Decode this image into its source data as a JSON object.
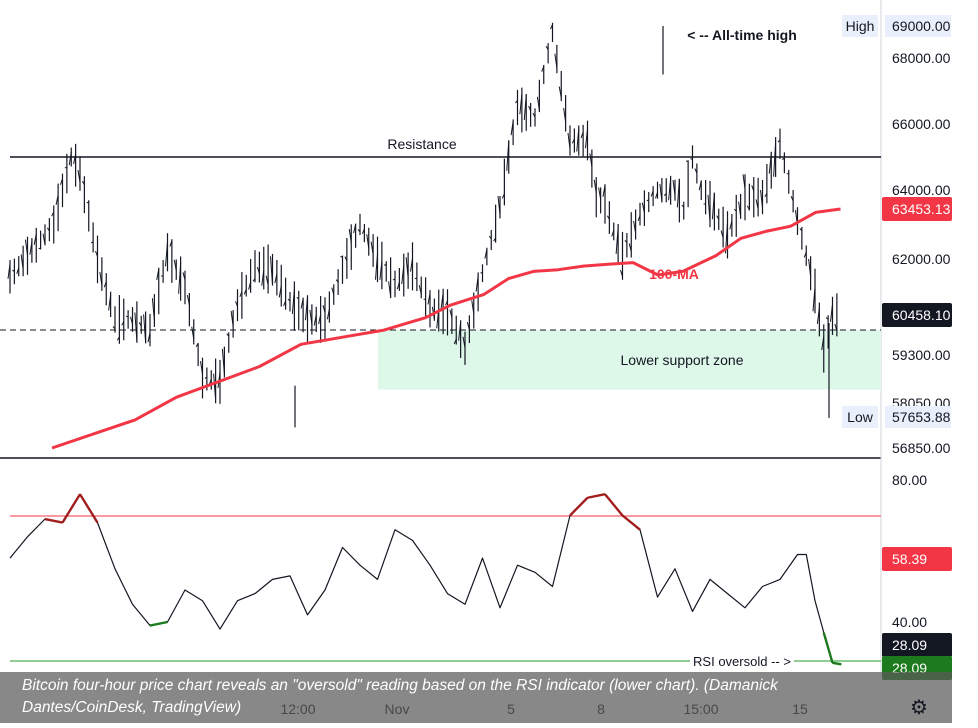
{
  "chart_data": [
    {
      "type": "line",
      "name": "Bitcoin four-hour price chart",
      "y_ticks": [
        "69000.00",
        "68000.00",
        "66000.00",
        "64000.00",
        "62000.00",
        "59300.00",
        "58050.00",
        "56850.00"
      ],
      "x_ticks": [
        "12:00",
        "Nov",
        "5",
        "8",
        "15:00",
        "15"
      ],
      "moving_average": {
        "name": "100-MA",
        "x": [
          0,
          10,
          15,
          20,
          25,
          30,
          35,
          40,
          45,
          48,
          52,
          55,
          58,
          61,
          64,
          67,
          70,
          73,
          76,
          80,
          83,
          86,
          89,
          92,
          95
        ],
        "values": [
          56850,
          57600,
          58200,
          58600,
          59000,
          59600,
          59800,
          60000,
          60350,
          60700,
          61000,
          61450,
          61650,
          61700,
          61800,
          61850,
          61900,
          61550,
          61650,
          62100,
          62600,
          62800,
          62950,
          63350,
          63450
        ]
      },
      "price_range": {
        "x": [
          0,
          5,
          7,
          8,
          10,
          12,
          14,
          16,
          18,
          20,
          22,
          24,
          26,
          28,
          30,
          32,
          34,
          36,
          38,
          40,
          42,
          44,
          46,
          48,
          50,
          52,
          54,
          56,
          58,
          60,
          62,
          64,
          66,
          67,
          68,
          69,
          70,
          72,
          74,
          76,
          77,
          78,
          79,
          80,
          82,
          84,
          86,
          88,
          90,
          92,
          93,
          94,
          95
        ],
        "values": [
          61500,
          63000,
          65000,
          64500,
          62000,
          60300,
          60300,
          60000,
          62200,
          61200,
          58700,
          58600,
          60700,
          61800,
          61700,
          60800,
          60300,
          60300,
          61700,
          63000,
          62000,
          61300,
          61800,
          60600,
          60500,
          59500,
          61600,
          63500,
          66500,
          66200,
          68800,
          65500,
          65500,
          63800,
          63600,
          62800,
          62100,
          63300,
          64000,
          64000,
          63400,
          65000,
          64000,
          63600,
          62700,
          63800,
          63800,
          65400,
          63100,
          61100,
          59500,
          60400,
          60458
        ]
      },
      "levels": [
        {
          "label": "Resistance",
          "value": 65000
        },
        {
          "label": "< -- All-time high",
          "value": 69000
        },
        {
          "label": "Lower support zone",
          "value_top": 60000,
          "value_bottom": 58400
        }
      ],
      "price_tags": [
        {
          "label": "High",
          "value": "69000.00",
          "color": "#eaf0fb"
        },
        {
          "label": "",
          "value": "63453.13",
          "color": "#f23645"
        },
        {
          "label": "",
          "value": "60458.10",
          "color": "#131722"
        },
        {
          "label": "Low",
          "value": "57653.88",
          "color": "#eaf0fb"
        }
      ]
    },
    {
      "type": "line",
      "name": "RSI indicator",
      "y_ticks": [
        "80.00",
        "40.00"
      ],
      "overbought_level": 70,
      "oversold_level": 30,
      "oversold_label": "RSI oversold -- >",
      "series": [
        {
          "x": [
            0,
            2,
            4,
            6,
            8,
            10,
            12,
            14,
            16,
            18,
            20,
            22,
            24,
            26,
            28,
            30,
            32,
            34,
            36,
            38,
            40,
            42,
            44,
            46,
            48,
            50,
            52,
            54,
            56,
            58,
            60,
            62,
            64,
            66,
            68,
            70,
            72,
            74,
            76,
            78,
            80,
            82,
            84,
            86,
            88,
            90,
            91,
            92,
            93,
            94,
            95
          ],
          "values": [
            58,
            64,
            69,
            68,
            76,
            68,
            55,
            45,
            39,
            40,
            49,
            46,
            38,
            46,
            48,
            52,
            53,
            42,
            49,
            61,
            56,
            52,
            66,
            63,
            56,
            48,
            45,
            58,
            44,
            56,
            54,
            50,
            70,
            75,
            76,
            70,
            66,
            47,
            55,
            43,
            52,
            48,
            44,
            50,
            52,
            59,
            59,
            46,
            37,
            28.5,
            28.09
          ]
        }
      ],
      "price_tags": [
        {
          "value": "58.39",
          "color": "#f23645"
        },
        {
          "value": "28.09",
          "color": "#131722"
        },
        {
          "value": "28.09",
          "color": "#1e7a1e"
        }
      ]
    }
  ],
  "caption": {
    "line1": "Bitcoin four-hour price chart reveals an \"oversold\" reading based on the RSI indicator (lower chart). (Damanick",
    "line2": "Dantes/CoinDesk, TradingView)"
  },
  "colors": {
    "ma": "#f23645",
    "candle": "#131722",
    "support_zone": "#ddf7e8",
    "rsi_overbought_line": "#f23645",
    "rsi_oversold_line": "#4caf50",
    "rsi_line": "#131722",
    "rsi_hot": "#a31f1f",
    "rsi_cold": "#1e7a1e"
  },
  "icons": [
    "gear-icon"
  ]
}
